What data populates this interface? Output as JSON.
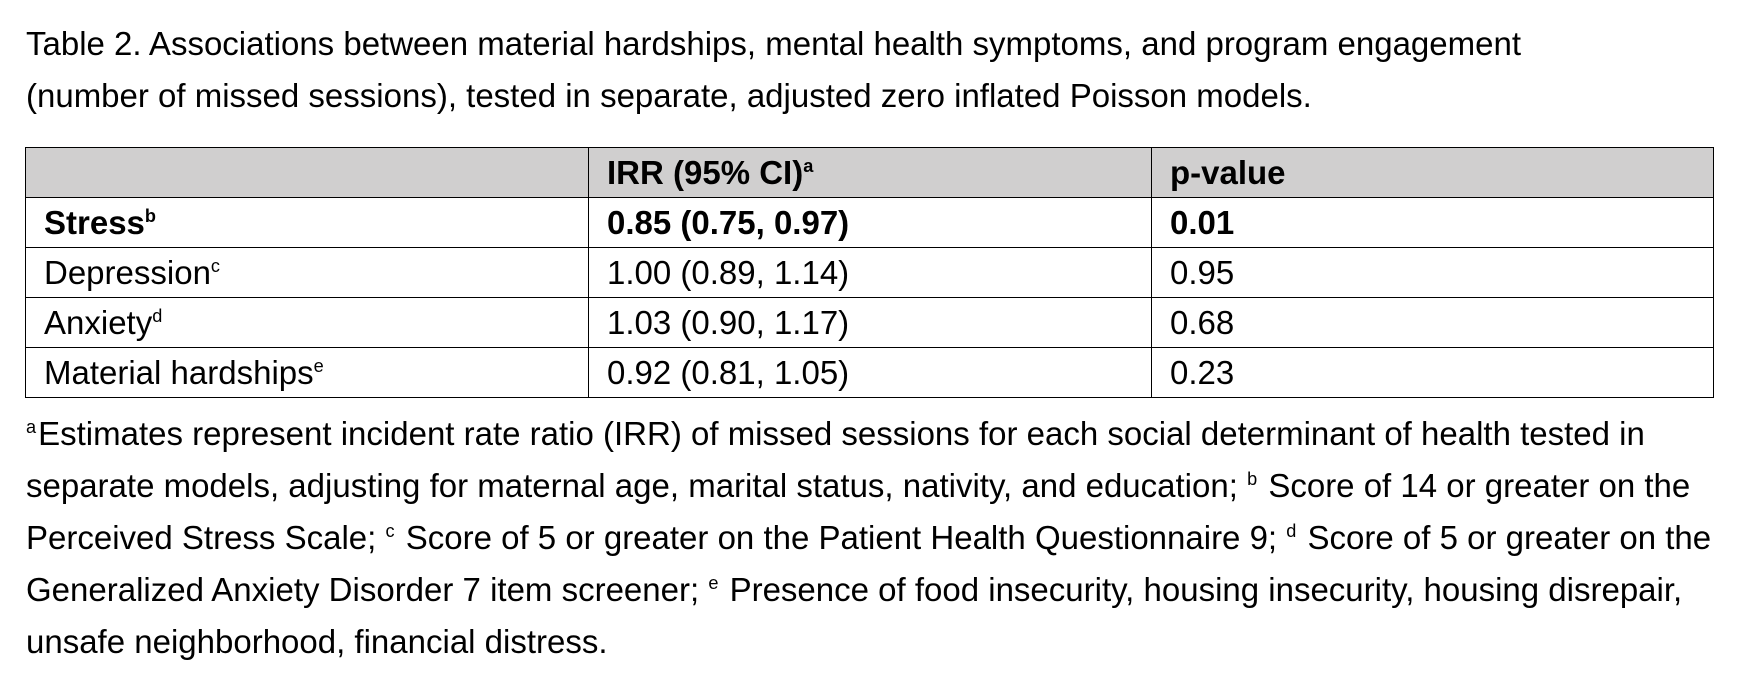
{
  "caption": {
    "line1": "Table 2. Associations between material hardships, mental health symptoms, and program engagement",
    "line2": "(number of missed sessions), tested in separate, adjusted zero inflated Poisson models."
  },
  "table": {
    "headers": {
      "col1": "",
      "col2": "IRR (95% CI)",
      "col2_sup": "a",
      "col3": "p-value"
    },
    "rows": [
      {
        "label": "Stress",
        "sup": "b",
        "irr": "0.85 (0.75, 0.97)",
        "p": "0.01",
        "bold": true
      },
      {
        "label": "Depression",
        "sup": "c",
        "irr": "1.00 (0.89, 1.14)",
        "p": "0.95",
        "bold": false
      },
      {
        "label": "Anxiety",
        "sup": "d",
        "irr": "1.03 (0.90, 1.17)",
        "p": "0.68",
        "bold": false
      },
      {
        "label": "Material hardships",
        "sup": "e",
        "irr": "0.92 (0.81, 1.05)",
        "p": "0.23",
        "bold": false
      }
    ]
  },
  "footnotes": {
    "a_sup": "a",
    "a_text": "Estimates represent incident rate ratio (IRR) of missed sessions for each social determinant of health tested in separate models, adjusting for maternal age, marital status, nativity, and education; ",
    "b_sup": "b",
    "b_text": " Score of 14 or greater on the Perceived Stress Scale; ",
    "c_sup": "c",
    "c_text": " Score of 5 or greater on the Patient Health Questionnaire 9; ",
    "d_sup": "d",
    "d_text": " Score of 5 or greater on the Generalized Anxiety Disorder 7 item screener; ",
    "e_sup": "e",
    "e_text": " Presence of food insecurity, housing insecurity, housing disrepair, unsafe neighborhood, financial distress."
  }
}
